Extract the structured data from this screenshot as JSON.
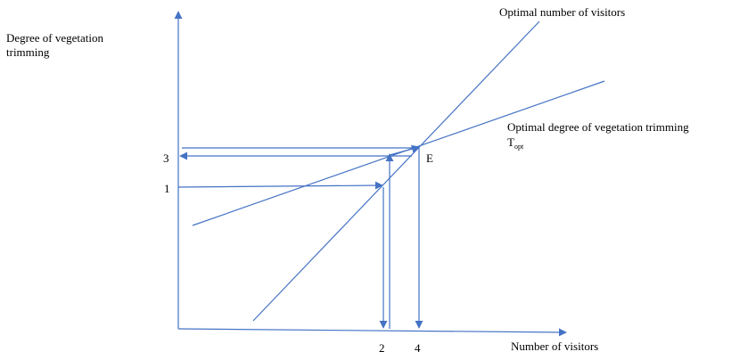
{
  "axes": {
    "y_label": "Degree of vegetation trimming",
    "x_label": "Number of visitors"
  },
  "curves": {
    "visitors_label": "Optimal number of visitors",
    "trimming_label": "Optimal degree of vegetation trimming",
    "trimming_symbol": "T",
    "trimming_symbol_sub": "opt"
  },
  "points": {
    "equilibrium": "E"
  },
  "ticks": {
    "y_upper": "3",
    "y_lower": "1",
    "x_left": "2",
    "x_right": "4"
  },
  "colors": {
    "line": "#4472c4",
    "text": "#000000"
  }
}
